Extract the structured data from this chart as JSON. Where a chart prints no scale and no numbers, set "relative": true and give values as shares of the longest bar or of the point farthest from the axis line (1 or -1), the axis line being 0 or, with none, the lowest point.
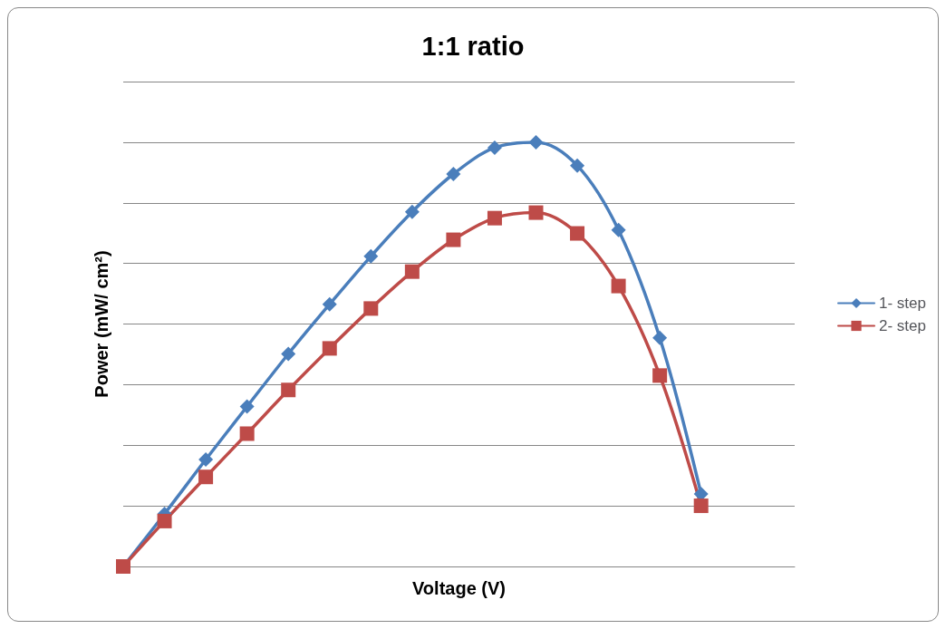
{
  "chart_data": {
    "type": "line",
    "title": "1:1 ratio",
    "xlabel": "Voltage (V)",
    "ylabel": "Power (mW/ cm²)",
    "relative": true,
    "grid": "y",
    "legend": "right",
    "categories": [
      null,
      null,
      null,
      null,
      null,
      null,
      null,
      null,
      null,
      null,
      null,
      null,
      null,
      null,
      null
    ],
    "series": [
      {
        "name": "1- step",
        "color": "#4a7ebb",
        "marker": "diamond",
        "values": [
          0,
          0.124,
          0.252,
          0.377,
          0.501,
          0.618,
          0.731,
          0.836,
          0.925,
          0.987,
          1,
          0.945,
          0.793,
          0.539,
          0.171
        ]
      },
      {
        "name": "2- step",
        "color": "#be4b48",
        "marker": "square",
        "values": [
          0,
          0.107,
          0.211,
          0.313,
          0.416,
          0.514,
          0.608,
          0.695,
          0.77,
          0.821,
          0.834,
          0.785,
          0.661,
          0.45,
          0.143
        ]
      }
    ]
  }
}
